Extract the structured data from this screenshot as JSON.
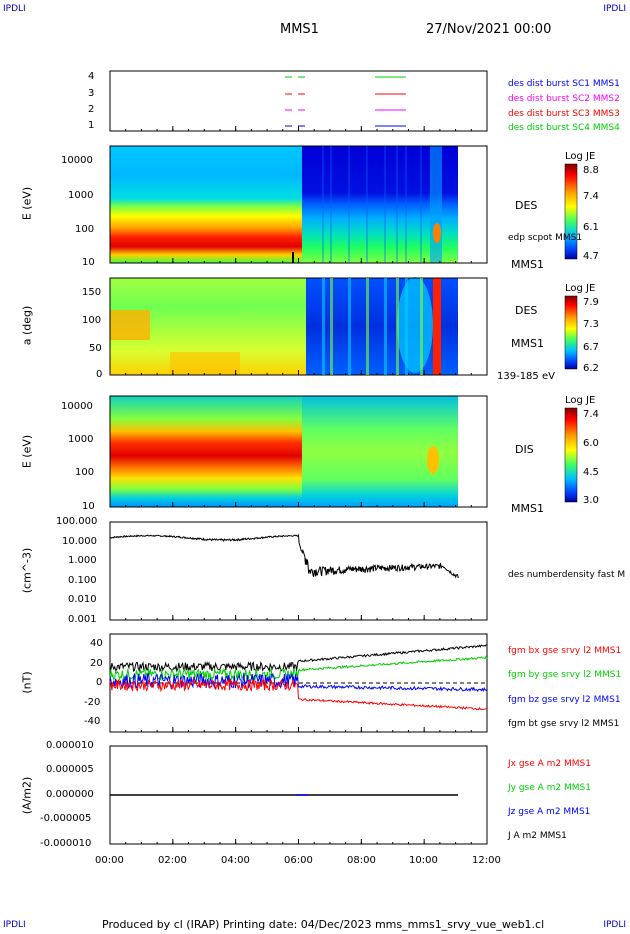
{
  "header": {
    "corner_left": "IPDLI",
    "corner_right": "IPDLI",
    "spacecraft": "MMS1",
    "date": "27/Nov/2021 00:00",
    "footer_left": "IPDLI",
    "footer_right": "IPDLI",
    "footer": "Produced by cl (IRAP)   Printing date: 04/Dec/2023   mms_mms1_srvy_vue_web1.cl"
  },
  "colors": {
    "mms1": "#0000ff",
    "mms2": "#ff00ff",
    "mms3": "#ff0000",
    "mms4": "#00d000",
    "black": "#000000"
  },
  "chart_data": [
    {
      "type": "scatter",
      "id": "availability",
      "yticks": [
        "4",
        "3",
        "2",
        "1"
      ],
      "legend": [
        {
          "name": "des dist burst SC1 MMS1",
          "color": "#0000ff"
        },
        {
          "name": "des dist burst SC2 MMS2",
          "color": "#ff00ff"
        },
        {
          "name": "des dist burst SC3 MMS3",
          "color": "#ff0000"
        },
        {
          "name": "des dist burst SC4 MMS4",
          "color": "#00d000"
        }
      ]
    },
    {
      "type": "heatmap",
      "id": "des-energy",
      "ylabel": "E (eV)",
      "yticks": [
        "10000",
        "1000",
        "100",
        "10"
      ],
      "label": "DES",
      "label2": "edp scpot MMS1",
      "label3": "MMS1",
      "colorbar": {
        "title": "Log JE",
        "ticks": [
          "8.8",
          "7.4",
          "6.1",
          "4.7"
        ]
      }
    },
    {
      "type": "heatmap",
      "id": "des-pitch",
      "ylabel": "a (deg)",
      "yticks": [
        "150",
        "100",
        "50",
        "0"
      ],
      "label": "DES",
      "label2": "MMS1",
      "label3": "139-185 eV",
      "colorbar": {
        "title": "Log JE",
        "ticks": [
          "7.9",
          "7.3",
          "6.7",
          "6.2"
        ]
      }
    },
    {
      "type": "heatmap",
      "id": "dis-energy",
      "ylabel": "E (eV)",
      "yticks": [
        "10000",
        "1000",
        "100",
        "10"
      ],
      "label": "DIS",
      "label2": "MMS1",
      "colorbar": {
        "title": "Log JE",
        "ticks": [
          "7.4",
          "6.0",
          "4.5",
          "3.0"
        ]
      }
    },
    {
      "type": "line",
      "id": "density",
      "ylabel": "(cm^-3)",
      "yticks": [
        "100.000",
        "10.000",
        "1.000",
        "0.100",
        "0.010",
        "0.001"
      ],
      "legend": [
        {
          "name": "des numberdensity fast M",
          "color": "#000000"
        }
      ]
    },
    {
      "type": "line",
      "id": "magnetic-field",
      "ylabel": "(nT)",
      "yticks": [
        "40",
        "20",
        "0",
        "-20",
        "-40"
      ],
      "ylim": [
        -45,
        45
      ],
      "legend": [
        {
          "name": "fgm bx gse srvy l2 MMS1",
          "color": "#ff0000"
        },
        {
          "name": "fgm by gse srvy l2 MMS1",
          "color": "#00d000"
        },
        {
          "name": "fgm bz gse srvy l2 MMS1",
          "color": "#0000ff"
        },
        {
          "name": "fgm bt gse srvy l2 MMS1",
          "color": "#000000"
        }
      ]
    },
    {
      "type": "line",
      "id": "current",
      "ylabel": "(A/m2)",
      "yticks": [
        "0.000010",
        "0.000005",
        "0.000000",
        "-0.000005",
        "-0.000010"
      ],
      "ylim": [
        -1e-05,
        1e-05
      ],
      "legend": [
        {
          "name": "Jx gse A m2 MMS1",
          "color": "#ff0000"
        },
        {
          "name": "Jy gse A m2 MMS1",
          "color": "#00d000"
        },
        {
          "name": "Jz gse A m2 MMS1",
          "color": "#0000ff"
        },
        {
          "name": "J A m2 MMS1",
          "color": "#000000"
        }
      ]
    }
  ],
  "xaxis": {
    "ticks": [
      "00:00",
      "02:00",
      "04:00",
      "06:00",
      "08:00",
      "10:00",
      "12:00"
    ]
  }
}
